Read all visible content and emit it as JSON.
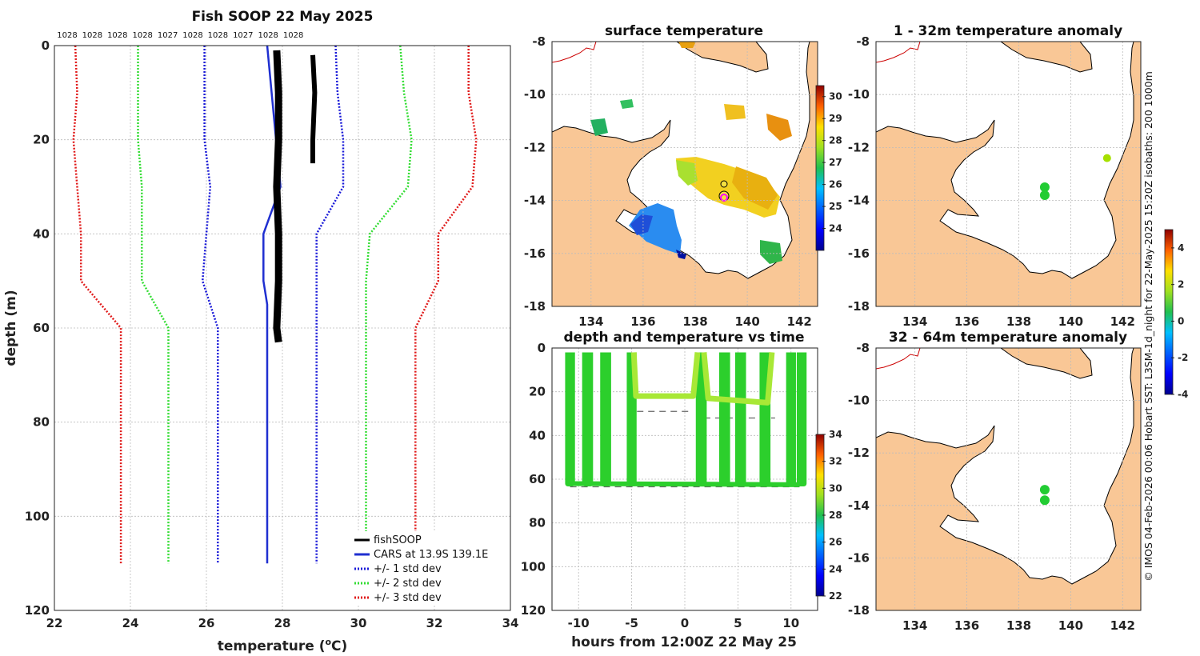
{
  "colors": {
    "land": "#f9c796",
    "cars": "#1f2fd0",
    "std1": "#1a1ad8",
    "std2": "#33dd33",
    "std3": "#e01a1a",
    "fish": "#000000"
  },
  "chart_data": [
    {
      "type": "line",
      "title": "Fish SOOP 22 May 2025",
      "xlabel": "temperature (",
      "xlabel_unit": "o",
      "xlabel_tail": "C)",
      "ylabel": "depth (m)",
      "xlim": [
        22,
        34
      ],
      "ylim": [
        0,
        120
      ],
      "xticks": [
        "22",
        "24",
        "26",
        "28",
        "30",
        "32",
        "34"
      ],
      "yticks": [
        "0",
        "20",
        "40",
        "60",
        "80",
        "100",
        "120"
      ],
      "density_labels": [
        "1028",
        "1028",
        "1028",
        "1028",
        "1027",
        "1028",
        "1028",
        "1027",
        "1028",
        "1028"
      ],
      "legend": [
        "fishSOOP",
        "CARS at 13.9S 139.1E",
        "+/- 1 std dev",
        "+/- 2 std dev",
        "+/- 3 std dev"
      ],
      "series": [
        {
          "name": "CARS",
          "depth": [
            0,
            30,
            40,
            50,
            55,
            60,
            110
          ],
          "temp": [
            27.6,
            27.95,
            27.5,
            27.5,
            27.6,
            27.6,
            27.6
          ]
        },
        {
          "name": "cars-minus-1std",
          "depth": [
            0,
            10,
            20,
            30,
            40,
            50,
            60,
            110
          ],
          "temp": [
            25.95,
            25.95,
            25.95,
            26.1,
            26.0,
            25.9,
            26.3,
            26.3
          ]
        },
        {
          "name": "cars-plus-1std",
          "depth": [
            0,
            10,
            20,
            30,
            40,
            50,
            60,
            110
          ],
          "temp": [
            29.4,
            29.45,
            29.6,
            29.6,
            28.9,
            28.9,
            28.9,
            28.9
          ]
        },
        {
          "name": "cars-minus-2std",
          "depth": [
            0,
            10,
            20,
            30,
            40,
            50,
            60,
            110
          ],
          "temp": [
            24.2,
            24.2,
            24.2,
            24.3,
            24.3,
            24.3,
            25.0,
            25.0
          ]
        },
        {
          "name": "cars-plus-2std",
          "depth": [
            0,
            10,
            20,
            30,
            40,
            50,
            60,
            110
          ],
          "temp": [
            31.1,
            31.2,
            31.4,
            31.3,
            30.3,
            30.2,
            30.2,
            30.2
          ]
        },
        {
          "name": "cars-minus-3std",
          "depth": [
            0,
            10,
            20,
            30,
            40,
            50,
            60,
            110
          ],
          "temp": [
            22.55,
            22.6,
            22.5,
            22.6,
            22.7,
            22.7,
            23.75,
            23.75
          ]
        },
        {
          "name": "cars-plus-3std",
          "depth": [
            0,
            10,
            20,
            30,
            40,
            50,
            60,
            110
          ],
          "temp": [
            32.9,
            32.9,
            33.1,
            33.0,
            32.1,
            32.1,
            31.5,
            31.5
          ]
        },
        {
          "name": "fishSOOP-deep",
          "depth": [
            1,
            10,
            20,
            30,
            40,
            50,
            60,
            63
          ],
          "temp": [
            27.85,
            27.9,
            27.9,
            27.85,
            27.9,
            27.9,
            27.85,
            27.9
          ]
        },
        {
          "name": "fishSOOP-shallow",
          "depth": [
            2,
            10,
            20,
            25
          ],
          "temp": [
            28.8,
            28.85,
            28.8,
            28.8
          ]
        }
      ]
    },
    {
      "type": "heatmap",
      "title": "surface temperature",
      "xlim": [
        132.5,
        142.7
      ],
      "ylim": [
        -18,
        -8
      ],
      "xticks": [
        "134",
        "136",
        "138",
        "140",
        "142"
      ],
      "yticks": [
        "-8",
        "-10",
        "-12",
        "-14",
        "-16",
        "-18"
      ],
      "colorbar": {
        "min": 23,
        "max": 30.5,
        "ticks": [
          "24",
          "25",
          "26",
          "27",
          "28",
          "29",
          "30"
        ]
      }
    },
    {
      "type": "heatmap",
      "title": "1 - 32m temperature anomaly",
      "xlim": [
        132.5,
        142.7
      ],
      "ylim": [
        -18,
        -8
      ],
      "xticks": [
        "134",
        "136",
        "138",
        "140",
        "142"
      ],
      "yticks": [
        "-8",
        "-10",
        "-12",
        "-14",
        "-16",
        "-18"
      ],
      "points": [
        {
          "lon": 139.0,
          "lat": -13.5
        },
        {
          "lon": 139.0,
          "lat": -13.8
        },
        {
          "lon": 141.4,
          "lat": -12.4
        }
      ],
      "colorbar": {
        "min": -4,
        "max": 5,
        "ticks": [
          "-4",
          "-2",
          "0",
          "2",
          "4"
        ]
      }
    },
    {
      "type": "scatter",
      "title": "depth and temperature vs time",
      "xlabel": "hours from 12:00Z 22 May 25",
      "xlim": [
        -12.5,
        12.5
      ],
      "ylim": [
        0,
        120
      ],
      "xticks": [
        "-10",
        "-5",
        "0",
        "5",
        "10"
      ],
      "yticks": [
        "0",
        "20",
        "40",
        "60",
        "80",
        "100",
        "120"
      ],
      "colorbar": {
        "min": 22,
        "max": 34,
        "ticks": [
          "22",
          "24",
          "26",
          "28",
          "30",
          "32",
          "34"
        ]
      }
    },
    {
      "type": "heatmap",
      "title": "32 - 64m temperature anomaly",
      "xlim": [
        132.5,
        142.7
      ],
      "ylim": [
        -18,
        -8
      ],
      "xticks": [
        "134",
        "136",
        "138",
        "140",
        "142"
      ],
      "yticks": [
        "-8",
        "-10",
        "-12",
        "-14",
        "-16",
        "-18"
      ],
      "points": [
        {
          "lon": 139.0,
          "lat": -13.4
        },
        {
          "lon": 139.0,
          "lat": -13.8
        }
      ]
    }
  ],
  "side_caption": "© IMOS 04-Feb-2026 00:06 Hobart SST: L3SM-1d_night for 22-May-2025 15:20Z isobaths: 200  1000m"
}
